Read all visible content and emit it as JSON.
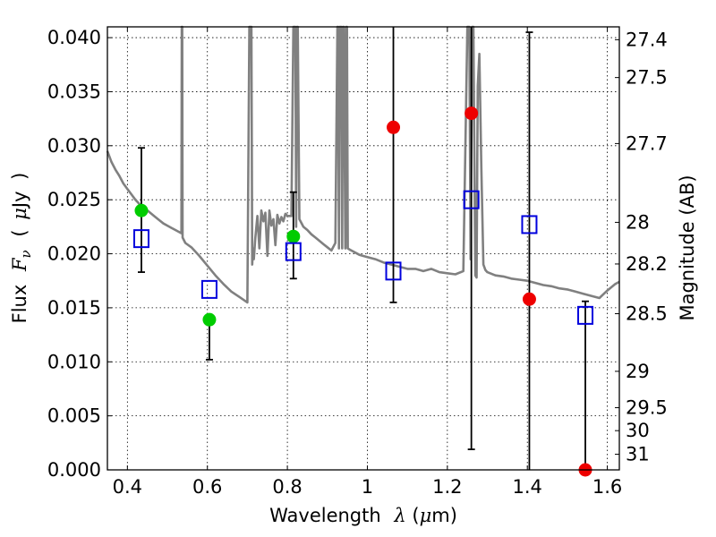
{
  "chart_data": {
    "type": "scatter",
    "xlabel": "Wavelength",
    "xlabel_symbol": "λ",
    "xlabel_unit_open": "(",
    "xlabel_unit_mu": "μ",
    "xlabel_unit_rest": "m)",
    "ylabel_left": "Flux",
    "ylabel_left_symbol": "F",
    "ylabel_left_sub": "ν",
    "ylabel_left_unit_open": "(",
    "ylabel_left_unit_mu": "μ",
    "ylabel_left_unit_rest": "Jy",
    "ylabel_left_unit_close": ")",
    "ylabel_right": "Magnitude (AB)",
    "xlim": [
      0.35,
      1.63
    ],
    "ylim": [
      0.0,
      0.041
    ],
    "x_ticks": [
      0.4,
      0.6,
      0.8,
      1.0,
      1.2,
      1.4,
      1.6
    ],
    "x_tick_labels": [
      "0.4",
      "0.6",
      "0.8",
      "1",
      "1.2",
      "1.4",
      "1.6"
    ],
    "y_ticks": [
      0.0,
      0.005,
      0.01,
      0.015,
      0.02,
      0.025,
      0.03,
      0.035,
      0.04
    ],
    "y_tick_labels": [
      "0.000",
      "0.005",
      "0.010",
      "0.015",
      "0.020",
      "0.025",
      "0.030",
      "0.035",
      "0.040"
    ],
    "right_ticks": [
      {
        "label": "27.4",
        "mag": 27.4
      },
      {
        "label": "27.5",
        "mag": 27.5
      },
      {
        "label": "27.7",
        "mag": 27.7
      },
      {
        "label": "28",
        "mag": 28.0
      },
      {
        "label": "28.2",
        "mag": 28.2
      },
      {
        "label": "28.5",
        "mag": 28.5
      },
      {
        "label": "29",
        "mag": 29.0
      },
      {
        "label": "29.5",
        "mag": 29.5
      },
      {
        "label": "30",
        "mag": 30.0
      },
      {
        "label": "31",
        "mag": 31.0
      }
    ],
    "grid": true,
    "series": [
      {
        "kind": "line",
        "color": "#808080",
        "x": [
          0.35,
          0.36,
          0.37,
          0.38,
          0.39,
          0.4,
          0.41,
          0.42,
          0.43,
          0.44,
          0.45,
          0.46,
          0.47,
          0.48,
          0.49,
          0.5,
          0.51,
          0.52,
          0.53,
          0.535,
          0.536,
          0.537,
          0.538,
          0.545,
          0.56,
          0.58,
          0.6,
          0.62,
          0.64,
          0.66,
          0.68,
          0.7,
          0.705,
          0.71,
          0.712,
          0.714,
          0.716,
          0.72,
          0.725,
          0.73,
          0.735,
          0.74,
          0.745,
          0.75,
          0.755,
          0.76,
          0.765,
          0.77,
          0.775,
          0.78,
          0.785,
          0.79,
          0.795,
          0.8,
          0.81,
          0.815,
          0.82,
          0.822,
          0.824,
          0.826,
          0.83,
          0.84,
          0.85,
          0.86,
          0.87,
          0.88,
          0.89,
          0.9,
          0.91,
          0.92,
          0.925,
          0.927,
          0.929,
          0.931,
          0.935,
          0.937,
          0.939,
          0.941,
          0.945,
          0.947,
          0.949,
          0.951,
          0.955,
          0.96,
          0.97,
          0.98,
          1.0,
          1.02,
          1.04,
          1.06,
          1.08,
          1.1,
          1.12,
          1.14,
          1.16,
          1.18,
          1.2,
          1.22,
          1.24,
          1.25,
          1.255,
          1.258,
          1.262,
          1.265,
          1.27,
          1.273,
          1.276,
          1.28,
          1.285,
          1.29,
          1.295,
          1.3,
          1.32,
          1.34,
          1.36,
          1.38,
          1.4,
          1.42,
          1.44,
          1.46,
          1.48,
          1.5,
          1.52,
          1.54,
          1.56,
          1.58,
          1.6,
          1.62,
          1.63
        ],
        "y": [
          0.0295,
          0.0285,
          0.0278,
          0.0272,
          0.0265,
          0.026,
          0.0255,
          0.025,
          0.0246,
          0.0243,
          0.024,
          0.0237,
          0.0234,
          0.0231,
          0.0228,
          0.0226,
          0.0224,
          0.0222,
          0.022,
          0.0219,
          0.0415,
          0.0415,
          0.0215,
          0.021,
          0.0206,
          0.0198,
          0.0189,
          0.018,
          0.0172,
          0.0165,
          0.016,
          0.0155,
          0.0415,
          0.0415,
          0.019,
          0.0205,
          0.0195,
          0.0215,
          0.0235,
          0.0205,
          0.024,
          0.023,
          0.0238,
          0.0198,
          0.024,
          0.0226,
          0.0232,
          0.0208,
          0.0236,
          0.0228,
          0.0234,
          0.023,
          0.0237,
          0.0235,
          0.0235,
          0.0415,
          0.0415,
          0.0225,
          0.0415,
          0.0415,
          0.0232,
          0.0225,
          0.0222,
          0.0218,
          0.0215,
          0.0212,
          0.0209,
          0.0206,
          0.0203,
          0.021,
          0.0415,
          0.0415,
          0.0205,
          0.0415,
          0.0415,
          0.0205,
          0.0415,
          0.0415,
          0.0205,
          0.0415,
          0.0415,
          0.0205,
          0.0204,
          0.0203,
          0.0201,
          0.0199,
          0.0197,
          0.0195,
          0.0192,
          0.019,
          0.0188,
          0.0186,
          0.0186,
          0.0184,
          0.0186,
          0.0183,
          0.0182,
          0.0181,
          0.0184,
          0.0415,
          0.0415,
          0.0195,
          0.0415,
          0.0415,
          0.018,
          0.0178,
          0.0355,
          0.0385,
          0.028,
          0.019,
          0.0185,
          0.0183,
          0.018,
          0.0179,
          0.0177,
          0.0176,
          0.0175,
          0.0173,
          0.0171,
          0.017,
          0.0168,
          0.0167,
          0.0165,
          0.0163,
          0.0161,
          0.0159,
          0.0166,
          0.0172,
          0.0174
        ]
      },
      {
        "kind": "errorbar-points",
        "name": "green",
        "color": "#00cc00",
        "x": [
          0.435,
          0.605,
          0.815
        ],
        "y": [
          0.024,
          0.0139,
          0.0216
        ],
        "yerr_low": [
          0.0183,
          0.0102,
          0.0177
        ],
        "yerr_high": [
          0.0298,
          0.0139,
          0.0257
        ]
      },
      {
        "kind": "errorbar-points",
        "name": "red",
        "color": "#ee0000",
        "x": [
          1.065,
          1.26,
          1.405,
          1.545
        ],
        "y": [
          0.0317,
          0.033,
          0.0158,
          0.0
        ],
        "yerr_low": [
          0.0155,
          0.0019,
          0.0,
          0.0
        ],
        "yerr_high": [
          0.0415,
          0.0415,
          0.0405,
          0.0156
        ]
      },
      {
        "kind": "open-squares",
        "name": "blue",
        "color": "#0000dd",
        "x": [
          0.435,
          0.605,
          0.815,
          1.065,
          1.26,
          1.405,
          1.545
        ],
        "y": [
          0.0214,
          0.0167,
          0.0202,
          0.0184,
          0.025,
          0.0227,
          0.0143
        ]
      }
    ]
  }
}
